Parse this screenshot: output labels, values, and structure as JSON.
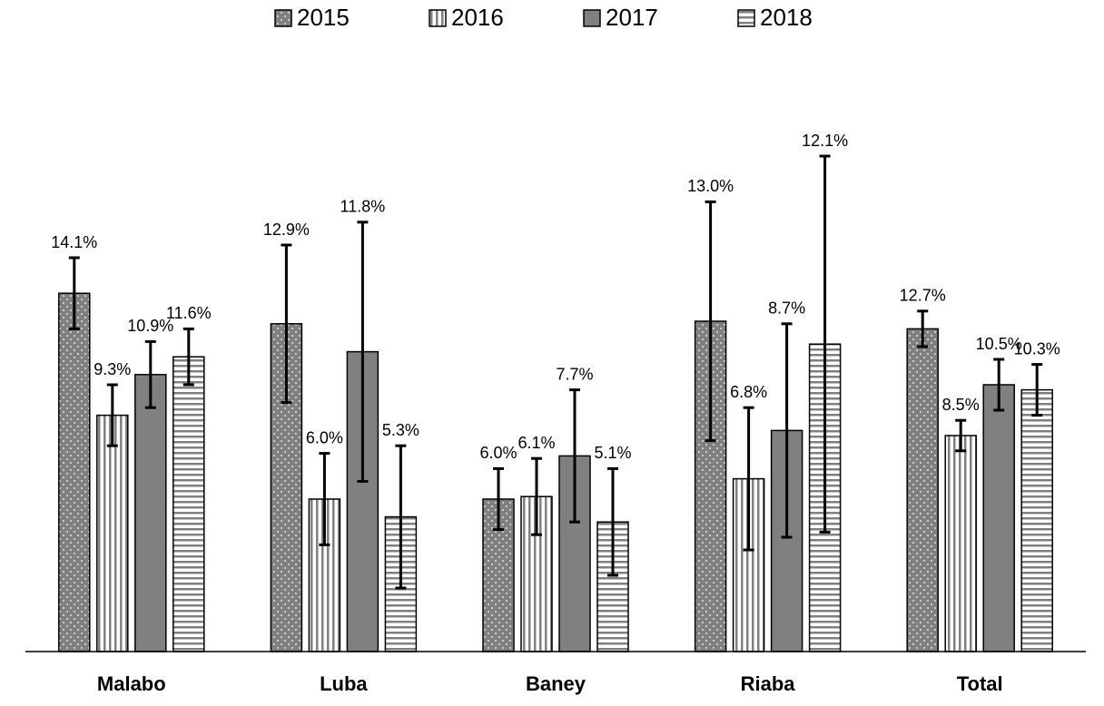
{
  "chart_data": {
    "type": "bar",
    "categories": [
      "Malabo",
      "Luba",
      "Baney",
      "Riaba",
      "Total"
    ],
    "series": [
      {
        "name": "2015",
        "color": "#808080",
        "pattern": "dots",
        "values": [
          14.1,
          12.9,
          6.0,
          13.0,
          12.7
        ],
        "value_labels": [
          "14.1%",
          "12.9%",
          "6.0%",
          "13.0%",
          "12.7%"
        ],
        "errors": [
          1.4,
          3.1,
          1.2,
          4.7,
          0.7
        ]
      },
      {
        "name": "2016",
        "color": "#808080",
        "pattern": "vertical",
        "values": [
          9.3,
          6.0,
          6.1,
          6.8,
          8.5
        ],
        "value_labels": [
          "9.3%",
          "6.0%",
          "6.1%",
          "6.8%",
          "8.5%"
        ],
        "errors": [
          1.2,
          1.8,
          1.5,
          2.8,
          0.6
        ]
      },
      {
        "name": "2017",
        "color": "#808080",
        "pattern": "solid",
        "values": [
          10.9,
          11.8,
          7.7,
          8.7,
          10.5
        ],
        "value_labels": [
          "10.9%",
          "11.8%",
          "7.7%",
          "8.7%",
          "10.5%"
        ],
        "errors": [
          1.3,
          5.1,
          2.6,
          4.2,
          1.0
        ]
      },
      {
        "name": "2018",
        "color": "#808080",
        "pattern": "horizontal",
        "values": [
          11.6,
          5.3,
          5.1,
          12.1,
          10.3
        ],
        "value_labels": [
          "11.6%",
          "5.3%",
          "5.1%",
          "12.1%",
          "10.3%"
        ],
        "errors": [
          1.1,
          2.8,
          2.1,
          7.4,
          1.0
        ]
      }
    ],
    "legend": "top"
  }
}
